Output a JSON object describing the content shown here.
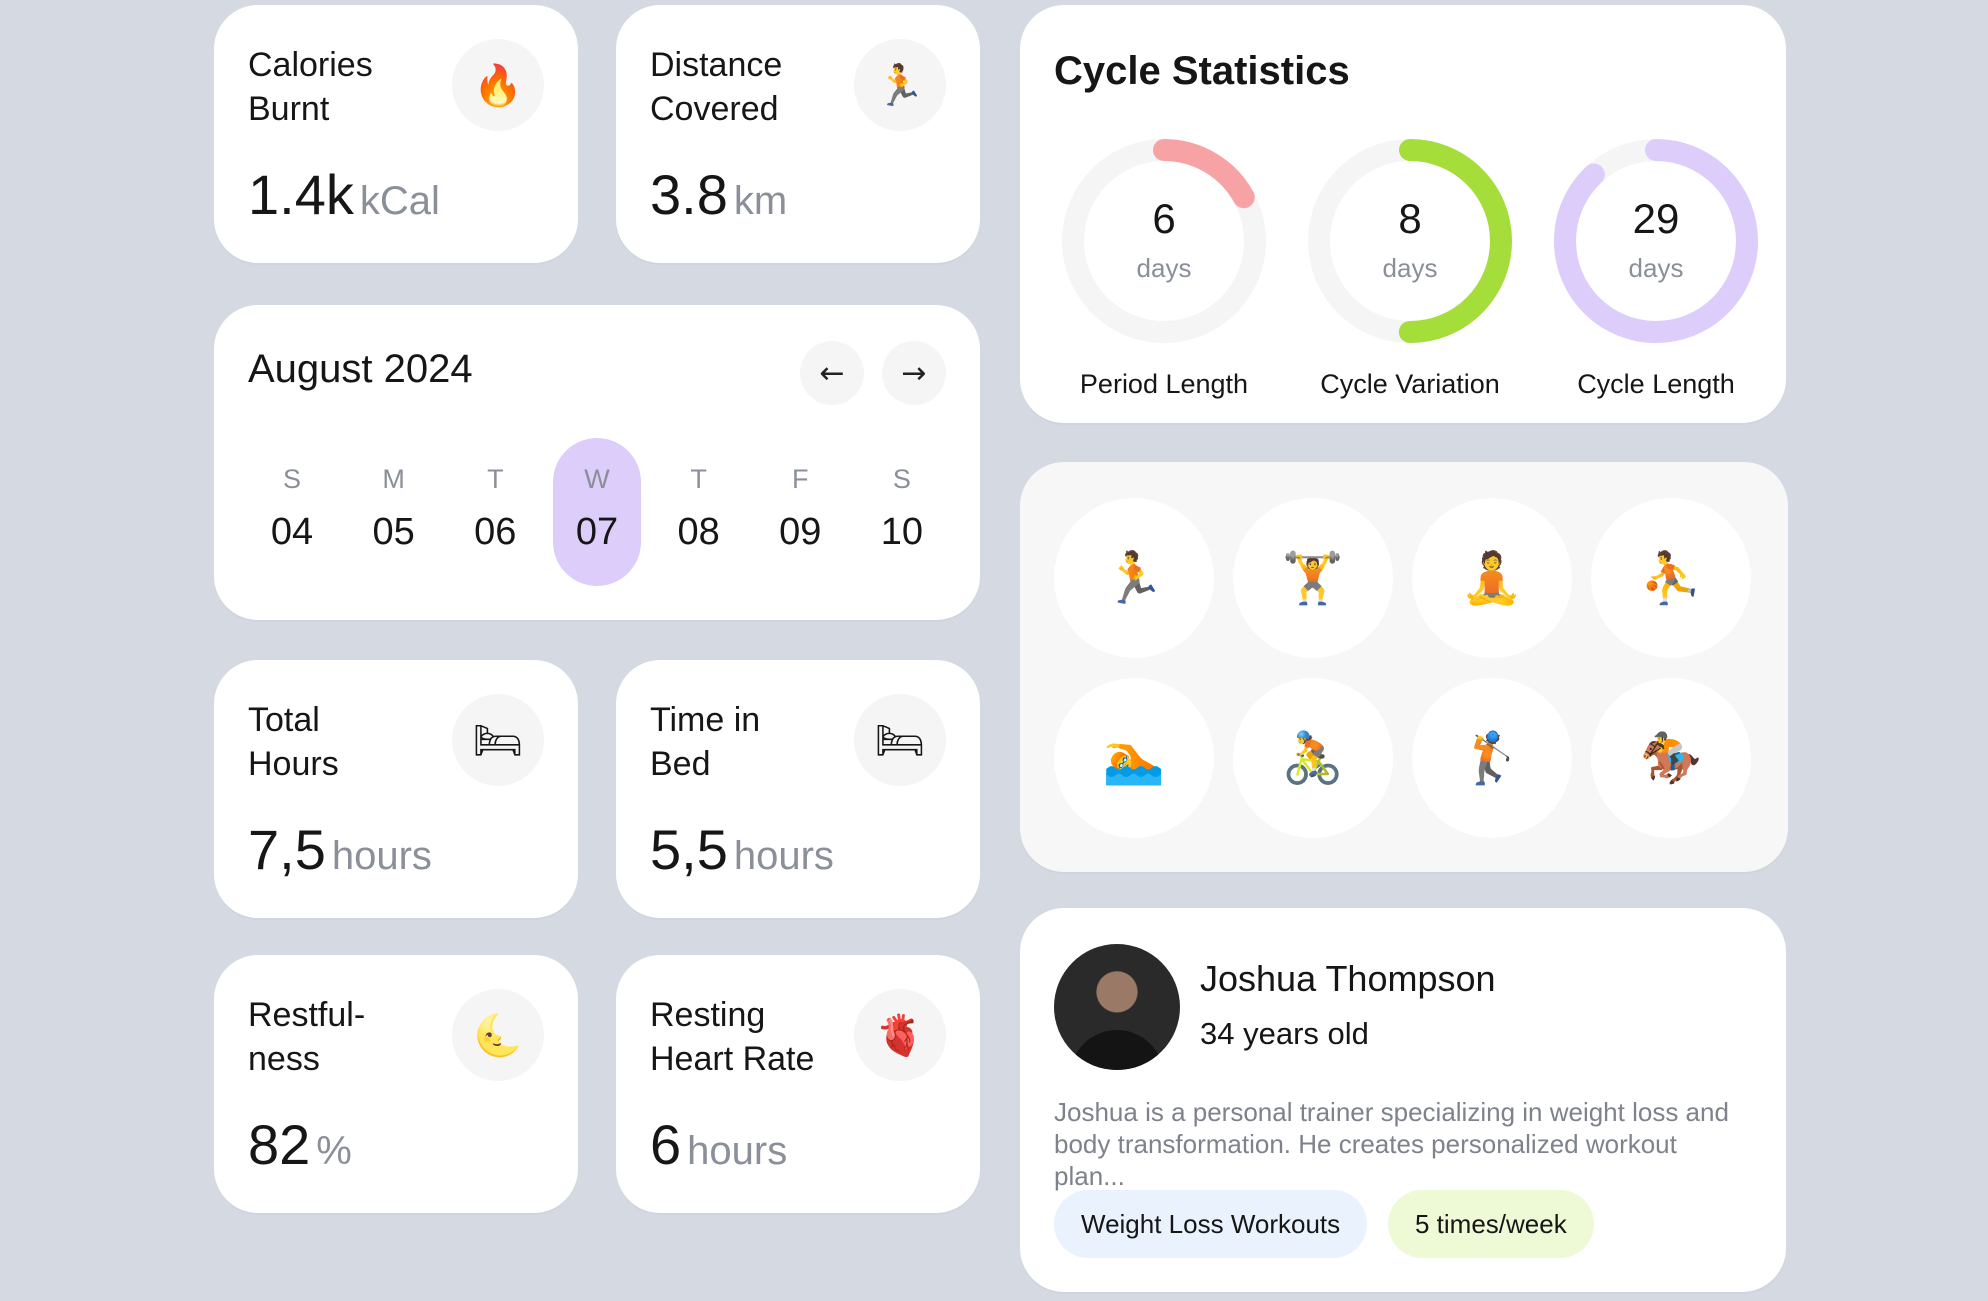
{
  "stats": {
    "calories": {
      "title": "Calories\nBurnt",
      "icon": "fire-icon",
      "glyph": "🔥",
      "value": "1.4k",
      "unit": "kCal"
    },
    "distance": {
      "title": "Distance\nCovered",
      "icon": "runner-icon",
      "glyph": "🏃",
      "value": "3.8",
      "unit": "km"
    },
    "total_hours": {
      "title": "Total\nHours",
      "icon": "bed-icon",
      "glyph": "🛏",
      "value": "7,5",
      "unit": "hours"
    },
    "time_in_bed": {
      "title": "Time in\nBed",
      "icon": "bed-icon",
      "glyph": "🛏",
      "value": "5,5",
      "unit": "hours"
    },
    "restfulness": {
      "title": "Restful-\nness",
      "icon": "moon-icon",
      "glyph": "🌜",
      "value": "82",
      "unit": "%"
    },
    "resting_hr": {
      "title": "Resting\nHeart Rate",
      "icon": "heart-icon",
      "glyph": "🫀",
      "value": "6",
      "unit": "hours"
    }
  },
  "calendar": {
    "title": "August 2024",
    "prev_icon": "arrow-left-icon",
    "prev_glyph": "←",
    "next_icon": "arrow-right-icon",
    "next_glyph": "→",
    "days": [
      {
        "label": "S",
        "num": "04"
      },
      {
        "label": "M",
        "num": "05"
      },
      {
        "label": "T",
        "num": "06"
      },
      {
        "label": "W",
        "num": "07",
        "selected": true
      },
      {
        "label": "T",
        "num": "08"
      },
      {
        "label": "F",
        "num": "09"
      },
      {
        "label": "S",
        "num": "10"
      }
    ]
  },
  "cycle": {
    "title": "Cycle Statistics",
    "rings": [
      {
        "value": "6",
        "unit": "days",
        "label": "Period Length",
        "color": "#f7a3a6",
        "fill_fraction": 0.17
      },
      {
        "value": "8",
        "unit": "days",
        "label": "Cycle Variation",
        "color": "#a5dd3b",
        "fill_fraction": 0.5
      },
      {
        "value": "29",
        "unit": "days",
        "label": "Cycle Length",
        "color": "#dccdfb",
        "fill_fraction": 0.88
      }
    ]
  },
  "activities": [
    {
      "name": "running-icon",
      "glyph": "🏃"
    },
    {
      "name": "weightlifting-icon",
      "glyph": "🏋"
    },
    {
      "name": "yoga-icon",
      "glyph": "🧘"
    },
    {
      "name": "basketball-icon",
      "glyph": "⛹"
    },
    {
      "name": "swimming-icon",
      "glyph": "🏊"
    },
    {
      "name": "cycling-icon",
      "glyph": "🚴"
    },
    {
      "name": "golf-icon",
      "glyph": "🏌"
    },
    {
      "name": "horse-riding-icon",
      "glyph": "🏇"
    }
  ],
  "profile": {
    "name": "Joshua Thompson",
    "age": "34 years old",
    "description": "Joshua is a personal trainer specializing in weight loss and body transformation. He creates personalized workout plan...",
    "tags": [
      {
        "label": "Weight Loss Workouts",
        "color": "#eaf3fd"
      },
      {
        "label": "5 times/week",
        "color": "#eef9d6"
      }
    ]
  },
  "colors": {
    "background": "#d4d9e2",
    "card": "#ffffff",
    "accent_purple": "#dccdfb"
  }
}
